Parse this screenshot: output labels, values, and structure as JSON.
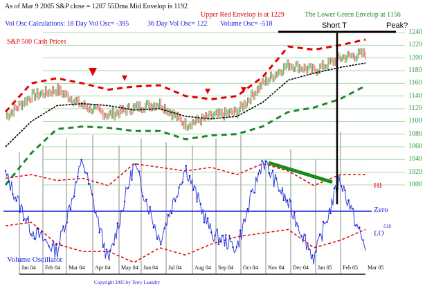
{
  "header": {
    "line1_black": "As of Mar 9  2005   S&P close = 1207  55Dma Mid Envelop is  1192",
    "line1_red": "Upper Red Envelop is at  1229",
    "line1_green": "The Lower Green Envelop at  1156",
    "line2_vol": "Vol Osc Calculations:   18 Day Vol Osc= -395",
    "line2_36": "36 Day Vol Osc=  122",
    "line2_volume": "Volume Osc= -518"
  },
  "annotations": {
    "short_t": "Short T",
    "peak": "Peak?",
    "price_title": "S&P 500 Cash Prices",
    "hi": "HI",
    "zero": "Zero",
    "lo": "LO",
    "lo_value": "-518",
    "osc_title": "Volume Oscillator",
    "copyright": "Copyright 2005 by Terry Laundry"
  },
  "colors": {
    "upper_envelope": "#e00000",
    "lower_envelope": "#1a8a2a",
    "mid_envelope": "#000000",
    "up_bar": "#5cae5c",
    "down_bar": "#f07070",
    "oscillator": "#3040e0",
    "grid": "#a8d8a8",
    "divergence": "#1a8a1a"
  },
  "chart_data": [
    {
      "type": "line",
      "title": "S&P 500 Cash Prices",
      "ylabel": "",
      "ylim": [
        1000,
        1240
      ],
      "yticks": [
        1240,
        1220,
        1200,
        1180,
        1160,
        1140,
        1120,
        1100,
        1080,
        1060,
        1040,
        1020,
        1000
      ],
      "grid": true,
      "x": [
        "Jan 04",
        "Feb 04",
        "Mar 04",
        "Apr 04",
        "May 04",
        "Jun 04",
        "Jul 04",
        "Aug 04",
        "Sep 04",
        "Oct 04",
        "Nov 04",
        "Dec 04",
        "Jan 05",
        "Feb 05",
        "Mar 05"
      ],
      "series": [
        {
          "name": "S&P 500 Close",
          "values": [
            1108,
            1140,
            1150,
            1125,
            1110,
            1122,
            1128,
            1095,
            1108,
            1115,
            1160,
            1190,
            1180,
            1200,
            1207
          ]
        },
        {
          "name": "55Dma Mid Envelope",
          "values": [
            1060,
            1100,
            1125,
            1128,
            1125,
            1118,
            1120,
            1108,
            1104,
            1108,
            1130,
            1165,
            1176,
            1185,
            1192
          ]
        },
        {
          "name": "Upper Red Envelope",
          "values": [
            1115,
            1160,
            1168,
            1160,
            1150,
            1155,
            1157,
            1140,
            1135,
            1140,
            1170,
            1218,
            1213,
            1220,
            1229
          ]
        },
        {
          "name": "Lower Green Envelope",
          "values": [
            1000,
            1050,
            1088,
            1092,
            1090,
            1085,
            1085,
            1072,
            1078,
            1080,
            1092,
            1115,
            1122,
            1135,
            1156
          ]
        }
      ],
      "markers": [
        {
          "label": "sell-triangle",
          "x": "Mar 04"
        },
        {
          "label": "sell-triangle",
          "x": "Apr 04"
        },
        {
          "label": "sell-triangle",
          "x": "Aug 04"
        },
        {
          "label": "sell-triangle",
          "x": "Oct 04"
        }
      ]
    },
    {
      "type": "line",
      "title": "Volume Oscillator",
      "x": [
        "Jan 04",
        "Feb 04",
        "Mar 04",
        "Apr 04",
        "May 04",
        "Jun 04",
        "Jul 04",
        "Aug 04",
        "Sep 04",
        "Oct 04",
        "Nov 04",
        "Dec 04",
        "Jan 05",
        "Feb 05",
        "Mar 05"
      ],
      "series": [
        {
          "name": "Volume Osc",
          "values": [
            500,
            -250,
            -550,
            700,
            -700,
            650,
            -400,
            600,
            -300,
            -500,
            700,
            100,
            -650,
            450,
            -518
          ]
        },
        {
          "name": "HI band",
          "values": [
            450,
            500,
            420,
            450,
            350,
            650,
            600,
            550,
            600,
            500,
            650,
            550,
            350,
            500,
            500
          ]
        },
        {
          "name": "LO band",
          "values": [
            -200,
            -150,
            -450,
            -550,
            -550,
            -700,
            -500,
            -600,
            -450,
            -350,
            -300,
            -250,
            -500,
            -400,
            -250
          ]
        }
      ],
      "labels": [
        "HI",
        "Zero",
        "LO"
      ],
      "current_value": -518
    }
  ],
  "xaxis": {
    "months": [
      "Jan 04",
      "Feb 04",
      "Mar 04",
      "Apr 04",
      "May 04",
      "Jun 04",
      "Jul 04",
      "Aug 04",
      "Sep 04",
      "Oct 04",
      "Nov 04",
      "Dec 04",
      "Jan 05",
      "Feb 05",
      "Mar 05"
    ]
  }
}
